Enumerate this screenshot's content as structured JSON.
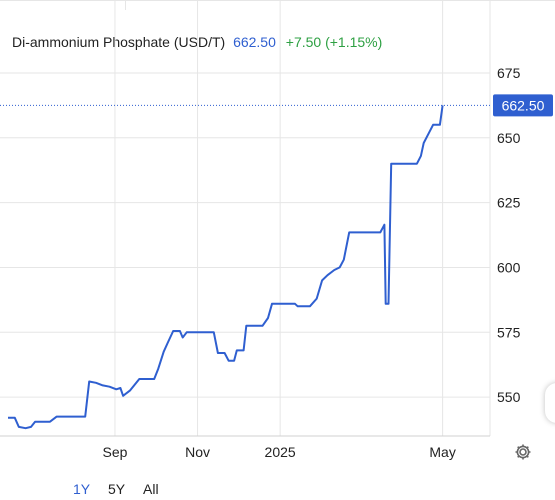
{
  "legend": {
    "name": "Di-ammonium Phosphate (USD/T)",
    "price": "662.50",
    "change": "+7.50 (+1.15%)"
  },
  "range_buttons": [
    "1Y",
    "5Y",
    "All"
  ],
  "active_range": "1Y",
  "colors": {
    "line": "#2f5fd0",
    "positive": "#2ea043",
    "grid": "#e6e6e6",
    "price_tag": "#2f5fd0"
  },
  "icons": {
    "settings": "gear-icon"
  },
  "chart_data": {
    "type": "line",
    "title": "Di-ammonium Phosphate (USD/T)",
    "xlabel": "",
    "ylabel": "",
    "x_ticks": [
      "Sep",
      "Nov",
      "2025",
      "May"
    ],
    "y_ticks": [
      550,
      575,
      600,
      625,
      650,
      675
    ],
    "ylim": [
      535,
      680
    ],
    "xlim": [
      "2024-06-14",
      "2025-06-05"
    ],
    "grid": true,
    "last_value_label": "662.50",
    "series": [
      {
        "name": "",
        "points": [
          [
            "2024-06-14",
            542
          ],
          [
            "2024-06-19",
            542
          ],
          [
            "2024-06-22",
            538.5
          ],
          [
            "2024-06-27",
            538
          ],
          [
            "2024-07-01",
            538.5
          ],
          [
            "2024-07-04",
            540.5
          ],
          [
            "2024-07-15",
            540.5
          ],
          [
            "2024-07-20",
            542.5
          ],
          [
            "2024-08-10",
            542.5
          ],
          [
            "2024-08-13",
            556
          ],
          [
            "2024-08-18",
            555.5
          ],
          [
            "2024-08-23",
            554.5
          ],
          [
            "2024-08-28",
            554
          ],
          [
            "2024-09-02",
            553
          ],
          [
            "2024-09-05",
            553.5
          ],
          [
            "2024-09-07",
            550.5
          ],
          [
            "2024-09-12",
            552.5
          ],
          [
            "2024-09-19",
            557
          ],
          [
            "2024-09-30",
            557
          ],
          [
            "2024-10-03",
            561
          ],
          [
            "2024-10-07",
            567.5
          ],
          [
            "2024-10-10",
            571
          ],
          [
            "2024-10-14",
            575.5
          ],
          [
            "2024-10-19",
            575.5
          ],
          [
            "2024-10-21",
            573
          ],
          [
            "2024-10-24",
            575
          ],
          [
            "2024-11-13",
            575
          ],
          [
            "2024-11-16",
            567
          ],
          [
            "2024-11-21",
            567
          ],
          [
            "2024-11-24",
            564
          ],
          [
            "2024-11-28",
            564
          ],
          [
            "2024-11-30",
            568
          ],
          [
            "2024-12-05",
            568
          ],
          [
            "2024-12-07",
            577.5
          ],
          [
            "2024-12-19",
            577.5
          ],
          [
            "2024-12-23",
            580.5
          ],
          [
            "2024-12-26",
            586
          ],
          [
            "2025-01-12",
            586
          ],
          [
            "2025-01-14",
            585
          ],
          [
            "2025-01-23",
            585
          ],
          [
            "2025-01-28",
            588
          ],
          [
            "2025-02-01",
            595
          ],
          [
            "2025-02-05",
            597
          ],
          [
            "2025-02-10",
            599
          ],
          [
            "2025-02-14",
            600
          ],
          [
            "2025-02-17",
            603
          ],
          [
            "2025-02-21",
            613.5
          ],
          [
            "2025-03-16",
            613.5
          ],
          [
            "2025-03-19",
            616.5
          ],
          [
            "2025-03-20",
            586
          ],
          [
            "2025-03-22",
            586
          ],
          [
            "2025-03-24",
            640
          ],
          [
            "2025-04-12",
            640
          ],
          [
            "2025-04-15",
            643
          ],
          [
            "2025-04-17",
            648
          ],
          [
            "2025-04-21",
            652
          ],
          [
            "2025-04-24",
            655
          ],
          [
            "2025-04-29",
            655
          ],
          [
            "2025-05-01",
            662.5
          ]
        ]
      }
    ]
  }
}
